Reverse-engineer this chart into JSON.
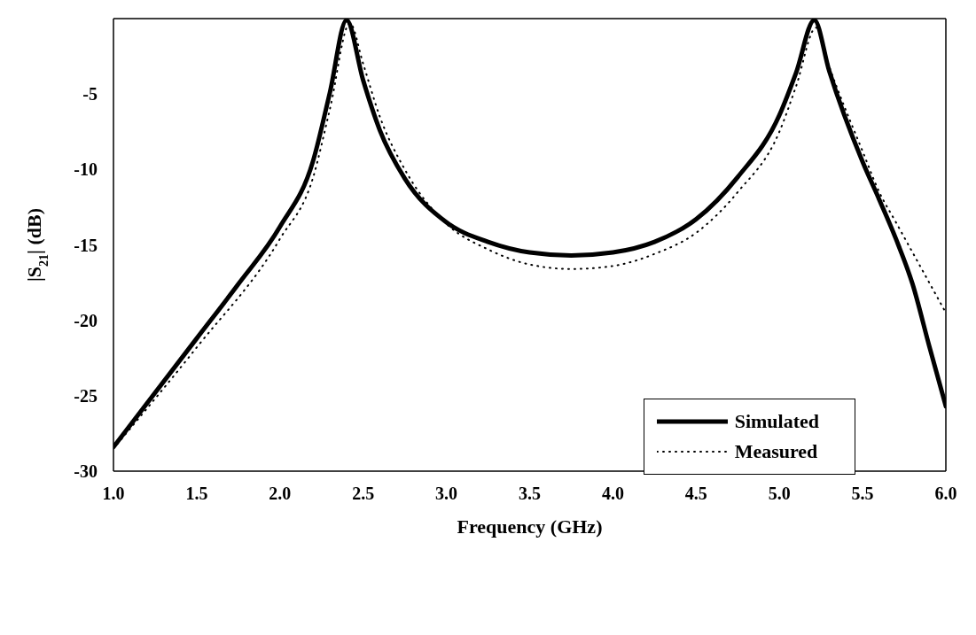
{
  "chart_data": {
    "type": "line",
    "xlabel": "Frequency (GHz)",
    "ylabel": "|S$_{21}$| (dB)",
    "xlim": [
      1.0,
      6.0
    ],
    "xticks": [
      {
        "value": 1,
        "label": "1.0"
      },
      1.5,
      {
        "value": 2,
        "label": "2.0"
      },
      2.5,
      {
        "value": 3,
        "label": "3.0"
      },
      3.5,
      {
        "value": 4,
        "label": "4.0"
      },
      4.5,
      {
        "value": 5,
        "label": "5.0"
      },
      5.5,
      {
        "value": 6,
        "label": "6.0"
      }
    ],
    "ylim": [
      -30,
      0
    ],
    "yticks": [
      -30,
      -25,
      -20,
      -15,
      -10,
      -5
    ],
    "legend": "bottom right",
    "marker": "none",
    "series": [
      {
        "name": "Simulated",
        "color": "#000000",
        "line_style": "solid",
        "x": [
          1.0,
          1.5,
          1.75,
          2.0,
          2.2,
          2.3,
          2.4,
          2.5,
          2.6,
          2.75,
          3.0,
          3.25,
          3.5,
          3.75,
          4.0,
          4.25,
          4.5,
          4.75,
          5.0,
          5.1,
          5.21,
          5.3,
          5.5,
          5.6,
          5.7,
          5.8,
          5.9,
          6.0
        ],
        "values": [
          -28.4,
          -21.2,
          -17.6,
          -13.8,
          -9.4,
          -4.9,
          -0.1,
          -4.1,
          -7.4,
          -10.6,
          -13.5,
          -14.8,
          -15.5,
          -15.7,
          -15.5,
          -14.8,
          -13.3,
          -10.5,
          -6.4,
          -3.6,
          -0.1,
          -3.5,
          -9.5,
          -12.0,
          -14.6,
          -17.6,
          -21.7,
          -25.7
        ]
      },
      {
        "name": "Measured",
        "color": "#000000",
        "line_style": "dotted",
        "x": [
          1.0,
          1.5,
          2.0,
          2.2,
          2.3,
          2.42,
          2.5,
          2.6,
          2.75,
          3.0,
          3.25,
          3.5,
          3.75,
          4.0,
          4.25,
          4.5,
          4.75,
          5.0,
          5.1,
          5.22,
          5.3,
          5.5,
          5.6,
          5.7,
          5.8,
          5.9,
          6.0
        ],
        "values": [
          -28.5,
          -21.8,
          -14.6,
          -10.5,
          -6.0,
          -0.3,
          -3.0,
          -6.5,
          -10.0,
          -13.6,
          -15.3,
          -16.3,
          -16.6,
          -16.4,
          -15.6,
          -14.2,
          -11.5,
          -7.5,
          -4.5,
          -0.6,
          -3.2,
          -8.8,
          -11.5,
          -13.5,
          -15.5,
          -17.5,
          -19.5
        ]
      }
    ]
  }
}
